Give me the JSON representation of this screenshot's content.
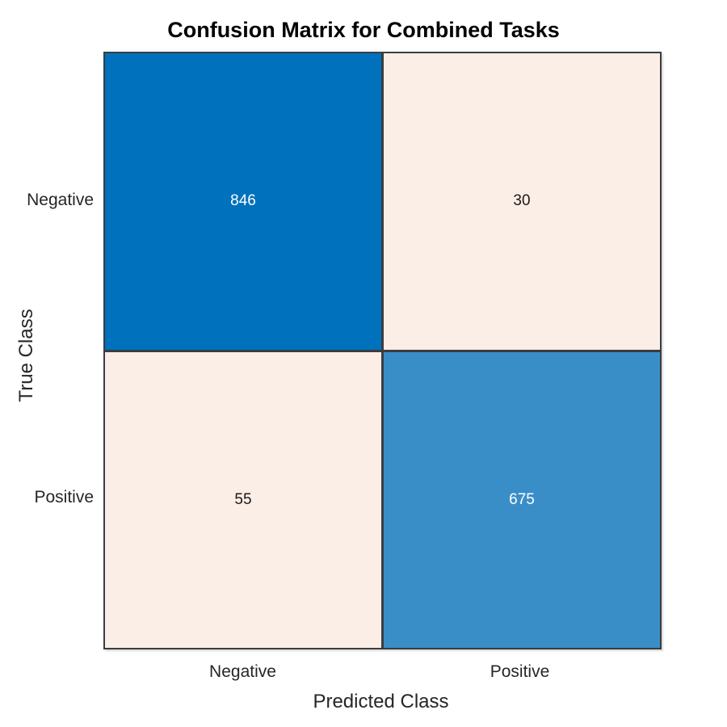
{
  "title": "Confusion Matrix for Combined Tasks",
  "x_axis": {
    "label": "Predicted Class",
    "ticks": [
      "Negative",
      "Positive"
    ]
  },
  "y_axis": {
    "label": "True Class",
    "ticks": [
      "Negative",
      "Positive"
    ]
  },
  "chart_data": {
    "type": "heatmap",
    "subtype": "confusion-matrix",
    "title": "Confusion Matrix for Combined Tasks",
    "xlabel": "Predicted Class",
    "ylabel": "True Class",
    "x_categories": [
      "Negative",
      "Positive"
    ],
    "y_categories": [
      "Negative",
      "Positive"
    ],
    "values": [
      [
        846,
        30
      ],
      [
        55,
        675
      ]
    ],
    "legend": "none",
    "grid": "off",
    "notes": "Row = true class, column = predicted class. Diagonal cells shaded blue by count intensity, off-diagonal cells light peach."
  },
  "colors": {
    "cell_true_negative": "#0071bc",
    "cell_false_positive": "#fbeee6",
    "cell_false_negative": "#fbeee6",
    "cell_true_positive": "#3a8ec8",
    "value_on_blue": "#ffffff",
    "value_on_light": "#1a1a1a",
    "grid_line": "#3a3d40",
    "tick_text": "#262626",
    "title_text": "#000000",
    "background": "#ffffff"
  }
}
